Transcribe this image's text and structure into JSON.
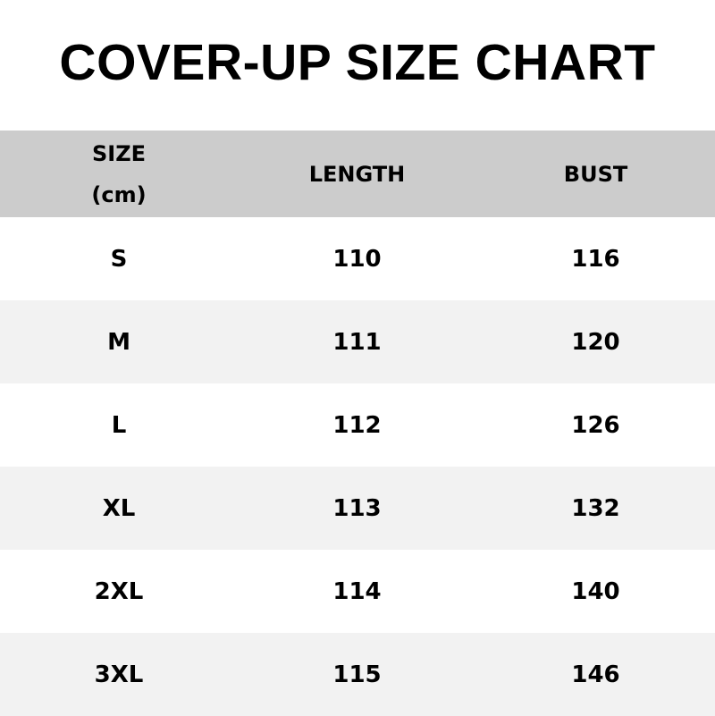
{
  "title": "COVER-UP SIZE CHART",
  "table": {
    "headers": {
      "size": "SIZE",
      "size_unit": "(cm)",
      "length": "LENGTH",
      "bust": "BUST"
    },
    "rows": [
      {
        "size": "S",
        "length": "110",
        "bust": "116"
      },
      {
        "size": "M",
        "length": "111",
        "bust": "120"
      },
      {
        "size": "L",
        "length": "112",
        "bust": "126"
      },
      {
        "size": "XL",
        "length": "113",
        "bust": "132"
      },
      {
        "size": "2XL",
        "length": "114",
        "bust": "140"
      },
      {
        "size": "3XL",
        "length": "115",
        "bust": "146"
      }
    ]
  },
  "colors": {
    "header_bg": "#cccccc",
    "alt_row_bg": "#f2f2f2"
  }
}
